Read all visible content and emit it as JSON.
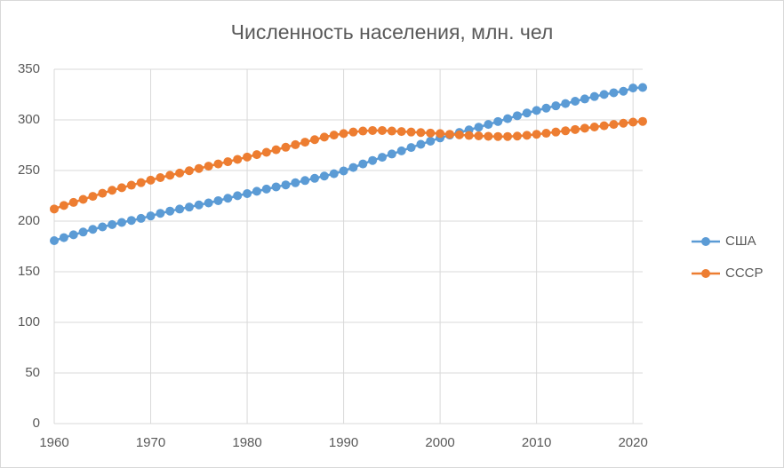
{
  "chart_data": {
    "type": "line",
    "title": "Численность населения, млн. чел",
    "x": [
      1960,
      1961,
      1962,
      1963,
      1964,
      1965,
      1966,
      1967,
      1968,
      1969,
      1970,
      1971,
      1972,
      1973,
      1974,
      1975,
      1976,
      1977,
      1978,
      1979,
      1980,
      1981,
      1982,
      1983,
      1984,
      1985,
      1986,
      1987,
      1988,
      1989,
      1990,
      1991,
      1992,
      1993,
      1994,
      1995,
      1996,
      1997,
      1998,
      1999,
      2000,
      2001,
      2002,
      2003,
      2004,
      2005,
      2006,
      2007,
      2008,
      2009,
      2010,
      2011,
      2012,
      2013,
      2014,
      2015,
      2016,
      2017,
      2018,
      2019,
      2020,
      2021
    ],
    "series": [
      {
        "name": "США",
        "color": "#5b9bd5",
        "values": [
          180.7,
          183.7,
          186.5,
          189.2,
          191.9,
          194.3,
          196.6,
          198.7,
          200.7,
          202.7,
          205.1,
          207.7,
          209.9,
          211.9,
          213.9,
          216.0,
          218.0,
          220.2,
          222.6,
          225.1,
          227.2,
          229.5,
          231.7,
          233.8,
          235.8,
          237.9,
          240.1,
          242.3,
          244.5,
          246.8,
          249.6,
          253.0,
          256.5,
          259.9,
          263.1,
          266.3,
          269.4,
          272.7,
          275.9,
          279.0,
          282.2,
          285.0,
          287.6,
          290.1,
          292.8,
          295.5,
          298.4,
          301.2,
          304.1,
          306.8,
          309.3,
          311.6,
          313.9,
          316.1,
          318.4,
          320.7,
          323.1,
          325.1,
          326.8,
          328.3,
          331.5,
          332.0
        ]
      },
      {
        "name": "СССР",
        "color": "#ed7d31",
        "values": [
          212,
          215.5,
          218.5,
          221.5,
          224.5,
          227.5,
          230.5,
          233,
          235.5,
          238,
          240.5,
          243,
          245.3,
          247.5,
          249.8,
          252,
          254.3,
          256.5,
          258.7,
          261,
          263.3,
          265.7,
          268,
          270.5,
          273,
          275.5,
          278,
          280.5,
          283,
          285,
          286.5,
          288,
          289,
          289.5,
          289.5,
          289,
          288.5,
          288,
          287.5,
          287,
          286.5,
          285.8,
          285.2,
          284.6,
          284.2,
          283.8,
          283.6,
          283.6,
          284,
          284.8,
          285.8,
          286.8,
          288,
          289.2,
          290.5,
          291.8,
          293,
          294.2,
          295.5,
          296.7,
          297.8,
          298.5
        ]
      }
    ],
    "xlim": [
      1960,
      2021
    ],
    "xticks": [
      1960,
      1970,
      1980,
      1990,
      2000,
      2010,
      2020
    ],
    "ylim": [
      0,
      350
    ],
    "yticks": [
      0,
      50,
      100,
      150,
      200,
      250,
      300,
      350
    ],
    "grid": true,
    "legend": "right"
  }
}
